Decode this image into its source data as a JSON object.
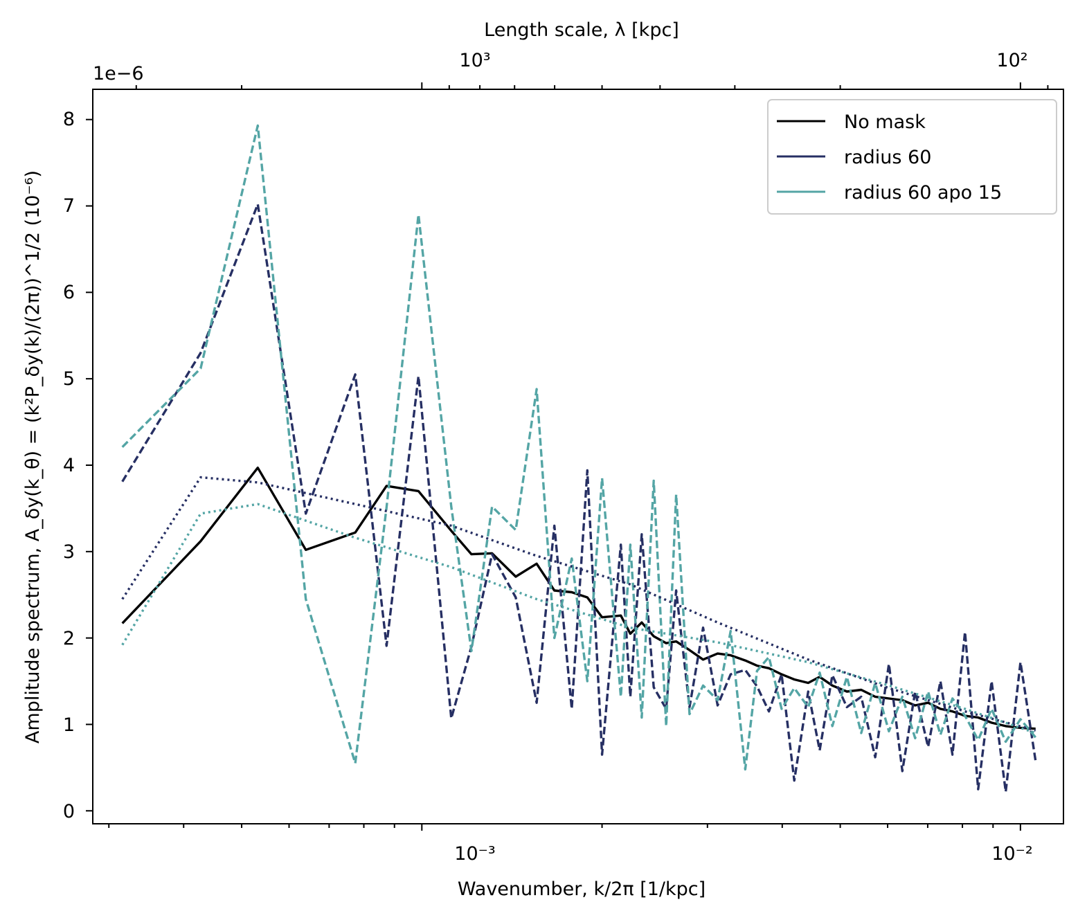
{
  "chart_data": {
    "type": "line",
    "title": "",
    "xlabel": "Wavenumber, k/2π [1/kpc]",
    "ylabel": "Amplitude spectrum, A_δy(k_θ) = (k²P_δy(k)/(2π))^1/2 (10⁻⁶)",
    "top_xlabel": "Length scale, λ [kpc]",
    "y_offset_text": "1e−6",
    "xscale": "log",
    "xlim": [
      0.000282,
      0.0118
    ],
    "ylim": [
      -0.15,
      8.35
    ],
    "x_ticks": [
      0.001,
      0.01
    ],
    "x_tick_labels": [
      "10⁻³",
      "10⁻²"
    ],
    "top_ticks": [
      1000,
      100
    ],
    "top_tick_labels": [
      "10³",
      "10²"
    ],
    "y_ticks": [
      0,
      1,
      2,
      3,
      4,
      5,
      6,
      7,
      8
    ],
    "y_tick_labels": [
      "0",
      "1",
      "2",
      "3",
      "4",
      "5",
      "6",
      "7",
      "8"
    ],
    "grid": false,
    "legend_position": "top-right",
    "series": [
      {
        "name": "No mask",
        "color": "#000000",
        "style": "solid",
        "x": [
          0.000316,
          0.000427,
          0.000532,
          0.00064,
          0.000774,
          0.000873,
          0.000987,
          0.00112,
          0.00121,
          0.00131,
          0.001435,
          0.001555,
          0.001665,
          0.00178,
          0.00189,
          0.002,
          0.00215,
          0.00223,
          0.00233,
          0.00244,
          0.00256,
          0.00266,
          0.0028,
          0.00295,
          0.00312,
          0.00328,
          0.00347,
          0.00363,
          0.0038,
          0.00399,
          0.00419,
          0.00442,
          0.00462,
          0.00485,
          0.00513,
          0.00542,
          0.00572,
          0.00603,
          0.00635,
          0.00667,
          0.00701,
          0.00735,
          0.0077,
          0.00808,
          0.0085,
          0.00895,
          0.00945,
          0.01,
          0.0106
        ],
        "y": [
          2.17,
          3.12,
          3.97,
          3.02,
          3.22,
          3.76,
          3.7,
          3.24,
          2.97,
          2.98,
          2.71,
          2.86,
          2.55,
          2.53,
          2.47,
          2.24,
          2.26,
          2.05,
          2.18,
          2.02,
          1.94,
          1.96,
          1.86,
          1.75,
          1.82,
          1.8,
          1.74,
          1.68,
          1.65,
          1.58,
          1.52,
          1.48,
          1.55,
          1.45,
          1.38,
          1.4,
          1.32,
          1.3,
          1.28,
          1.22,
          1.25,
          1.18,
          1.15,
          1.1,
          1.08,
          1.02,
          0.98,
          0.96,
          0.95
        ]
      },
      {
        "name": "radius 60",
        "color": "#262f63",
        "style": "dashed",
        "x": [
          0.000316,
          0.000427,
          0.000532,
          0.00064,
          0.000774,
          0.000873,
          0.000987,
          0.00112,
          0.00121,
          0.00131,
          0.001435,
          0.001555,
          0.001665,
          0.00178,
          0.00189,
          0.002,
          0.00215,
          0.00223,
          0.00233,
          0.00244,
          0.00256,
          0.00266,
          0.0028,
          0.00295,
          0.00312,
          0.00328,
          0.00347,
          0.00363,
          0.0038,
          0.00399,
          0.00419,
          0.00442,
          0.00462,
          0.00485,
          0.00513,
          0.00542,
          0.00572,
          0.00603,
          0.00635,
          0.00667,
          0.00701,
          0.00735,
          0.0077,
          0.00808,
          0.0085,
          0.00895,
          0.00945,
          0.01,
          0.0106
        ],
        "y": [
          3.81,
          5.3,
          7.02,
          3.44,
          5.05,
          1.91,
          5.03,
          1.07,
          1.9,
          2.97,
          2.47,
          1.25,
          3.3,
          1.18,
          3.94,
          0.65,
          3.08,
          1.32,
          3.2,
          1.43,
          1.18,
          2.55,
          1.2,
          2.12,
          1.22,
          1.58,
          1.63,
          1.44,
          1.15,
          1.58,
          0.35,
          1.38,
          0.7,
          1.57,
          1.2,
          1.32,
          0.62,
          1.7,
          0.46,
          1.38,
          0.74,
          1.5,
          0.65,
          2.07,
          0.25,
          1.5,
          0.22,
          1.72,
          0.58
        ]
      },
      {
        "name": "radius 60 apo 15",
        "color": "#54a5a5",
        "style": "dashed",
        "x": [
          0.000316,
          0.000427,
          0.000532,
          0.00064,
          0.000774,
          0.000873,
          0.000987,
          0.00112,
          0.00121,
          0.00131,
          0.001435,
          0.001555,
          0.001665,
          0.00178,
          0.00189,
          0.002,
          0.00215,
          0.00223,
          0.00233,
          0.00244,
          0.00256,
          0.00266,
          0.0028,
          0.00295,
          0.00312,
          0.00328,
          0.00347,
          0.00363,
          0.0038,
          0.00399,
          0.00419,
          0.00442,
          0.00462,
          0.00485,
          0.00513,
          0.00542,
          0.00572,
          0.00603,
          0.00635,
          0.00667,
          0.00701,
          0.00735,
          0.0077,
          0.00808,
          0.0085,
          0.00895,
          0.00945,
          0.01,
          0.0106
        ],
        "y": [
          4.21,
          5.12,
          7.93,
          2.45,
          0.55,
          3.51,
          6.9,
          3.52,
          1.85,
          3.52,
          3.25,
          4.88,
          2.0,
          2.92,
          1.5,
          3.85,
          1.32,
          3.08,
          1.08,
          3.82,
          0.98,
          3.66,
          1.12,
          1.45,
          1.28,
          2.08,
          0.48,
          1.62,
          1.78,
          1.18,
          1.42,
          1.2,
          1.6,
          0.98,
          1.55,
          0.9,
          1.48,
          0.92,
          1.32,
          0.84,
          1.38,
          0.88,
          1.3,
          1.1,
          0.82,
          1.18,
          0.8,
          1.06,
          0.85
        ]
      },
      {
        "color": "#262f63",
        "style": "dotted",
        "x": [
          0.000316,
          0.000427,
          0.000532,
          0.000774,
          0.00112,
          0.001555,
          0.00223,
          0.00312,
          0.00442,
          0.00603,
          0.00808,
          0.0106
        ],
        "y": [
          2.45,
          3.86,
          3.8,
          3.55,
          3.3,
          2.95,
          2.62,
          2.18,
          1.75,
          1.42,
          1.15,
          0.93
        ]
      },
      {
        "color": "#54a5a5",
        "style": "dotted",
        "x": [
          0.000316,
          0.000427,
          0.000532,
          0.000774,
          0.00112,
          0.001555,
          0.00223,
          0.00312,
          0.00442,
          0.00603,
          0.00808,
          0.0106
        ],
        "y": [
          1.92,
          3.44,
          3.55,
          3.16,
          2.82,
          2.45,
          2.12,
          1.95,
          1.72,
          1.45,
          1.18,
          0.9
        ]
      }
    ]
  }
}
